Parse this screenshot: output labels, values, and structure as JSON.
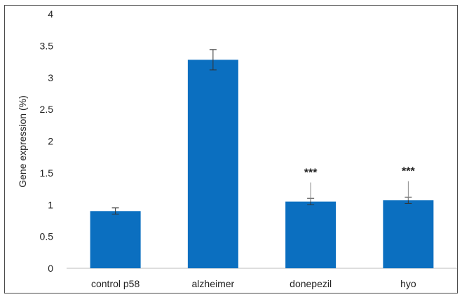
{
  "chart_data": {
    "type": "bar",
    "title": "",
    "xlabel": "",
    "ylabel": "Gene expression (%)",
    "categories": [
      "control p58",
      "alzheimer",
      "donepezil",
      "hyo"
    ],
    "values": [
      0.9,
      3.28,
      1.05,
      1.07
    ],
    "errors": [
      0.05,
      0.16,
      0.05,
      0.05
    ],
    "annotations": [
      "",
      "",
      "***",
      "***"
    ],
    "ylim": [
      0,
      4
    ],
    "yticks": [
      "0",
      "0.5",
      "1",
      "1.5",
      "2",
      "2.5",
      "3",
      "3.5",
      "4"
    ],
    "grid": false,
    "bar_color": "#0b6fc0"
  }
}
